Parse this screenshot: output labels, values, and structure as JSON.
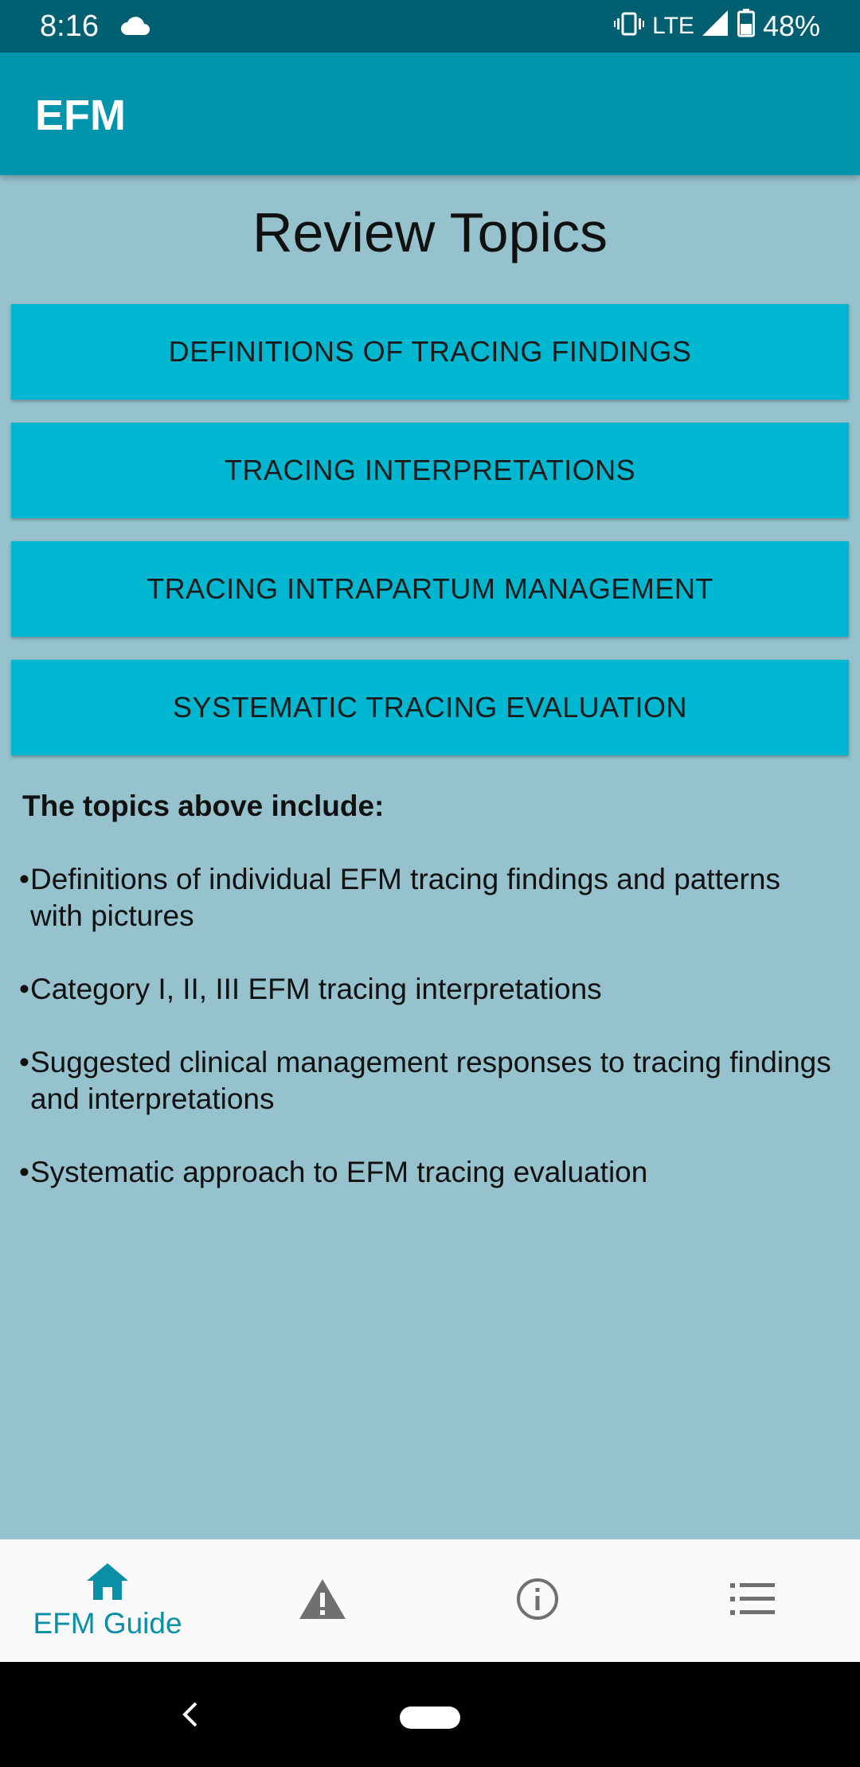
{
  "status_bar": {
    "time": "8:16",
    "network": "LTE",
    "battery": "48%",
    "icons": [
      "cloud-icon",
      "vibrate-icon",
      "signal-icon",
      "battery-icon"
    ]
  },
  "app_bar": {
    "title": "EFM"
  },
  "page": {
    "title": "Review Topics",
    "topics": [
      "DEFINITIONS OF TRACING FINDINGS",
      "TRACING INTERPRETATIONS",
      "TRACING INTRAPARTUM MANAGEMENT",
      "SYSTEMATIC TRACING EVALUATION"
    ],
    "info_heading": "The topics above include:",
    "bullet_marker": "•",
    "bullets": [
      "Definitions of individual EFM tracing findings and patterns with pictures",
      "Category I, II, III EFM tracing interpretations",
      "Suggested clinical management responses to tracing findings and interpretations",
      "Systematic approach to EFM tracing evaluation"
    ]
  },
  "bottom_nav": {
    "items": [
      {
        "label": "EFM Guide",
        "icon": "home-icon",
        "active": true
      },
      {
        "label": "",
        "icon": "warning-icon",
        "active": false
      },
      {
        "label": "",
        "icon": "info-icon",
        "active": false
      },
      {
        "label": "",
        "icon": "list-icon",
        "active": false
      }
    ]
  },
  "colors": {
    "status_bar": "#005f71",
    "app_bar": "#0095ad",
    "background": "#96c2cd",
    "button": "#00b7d2",
    "accent": "#0a8fa6"
  }
}
